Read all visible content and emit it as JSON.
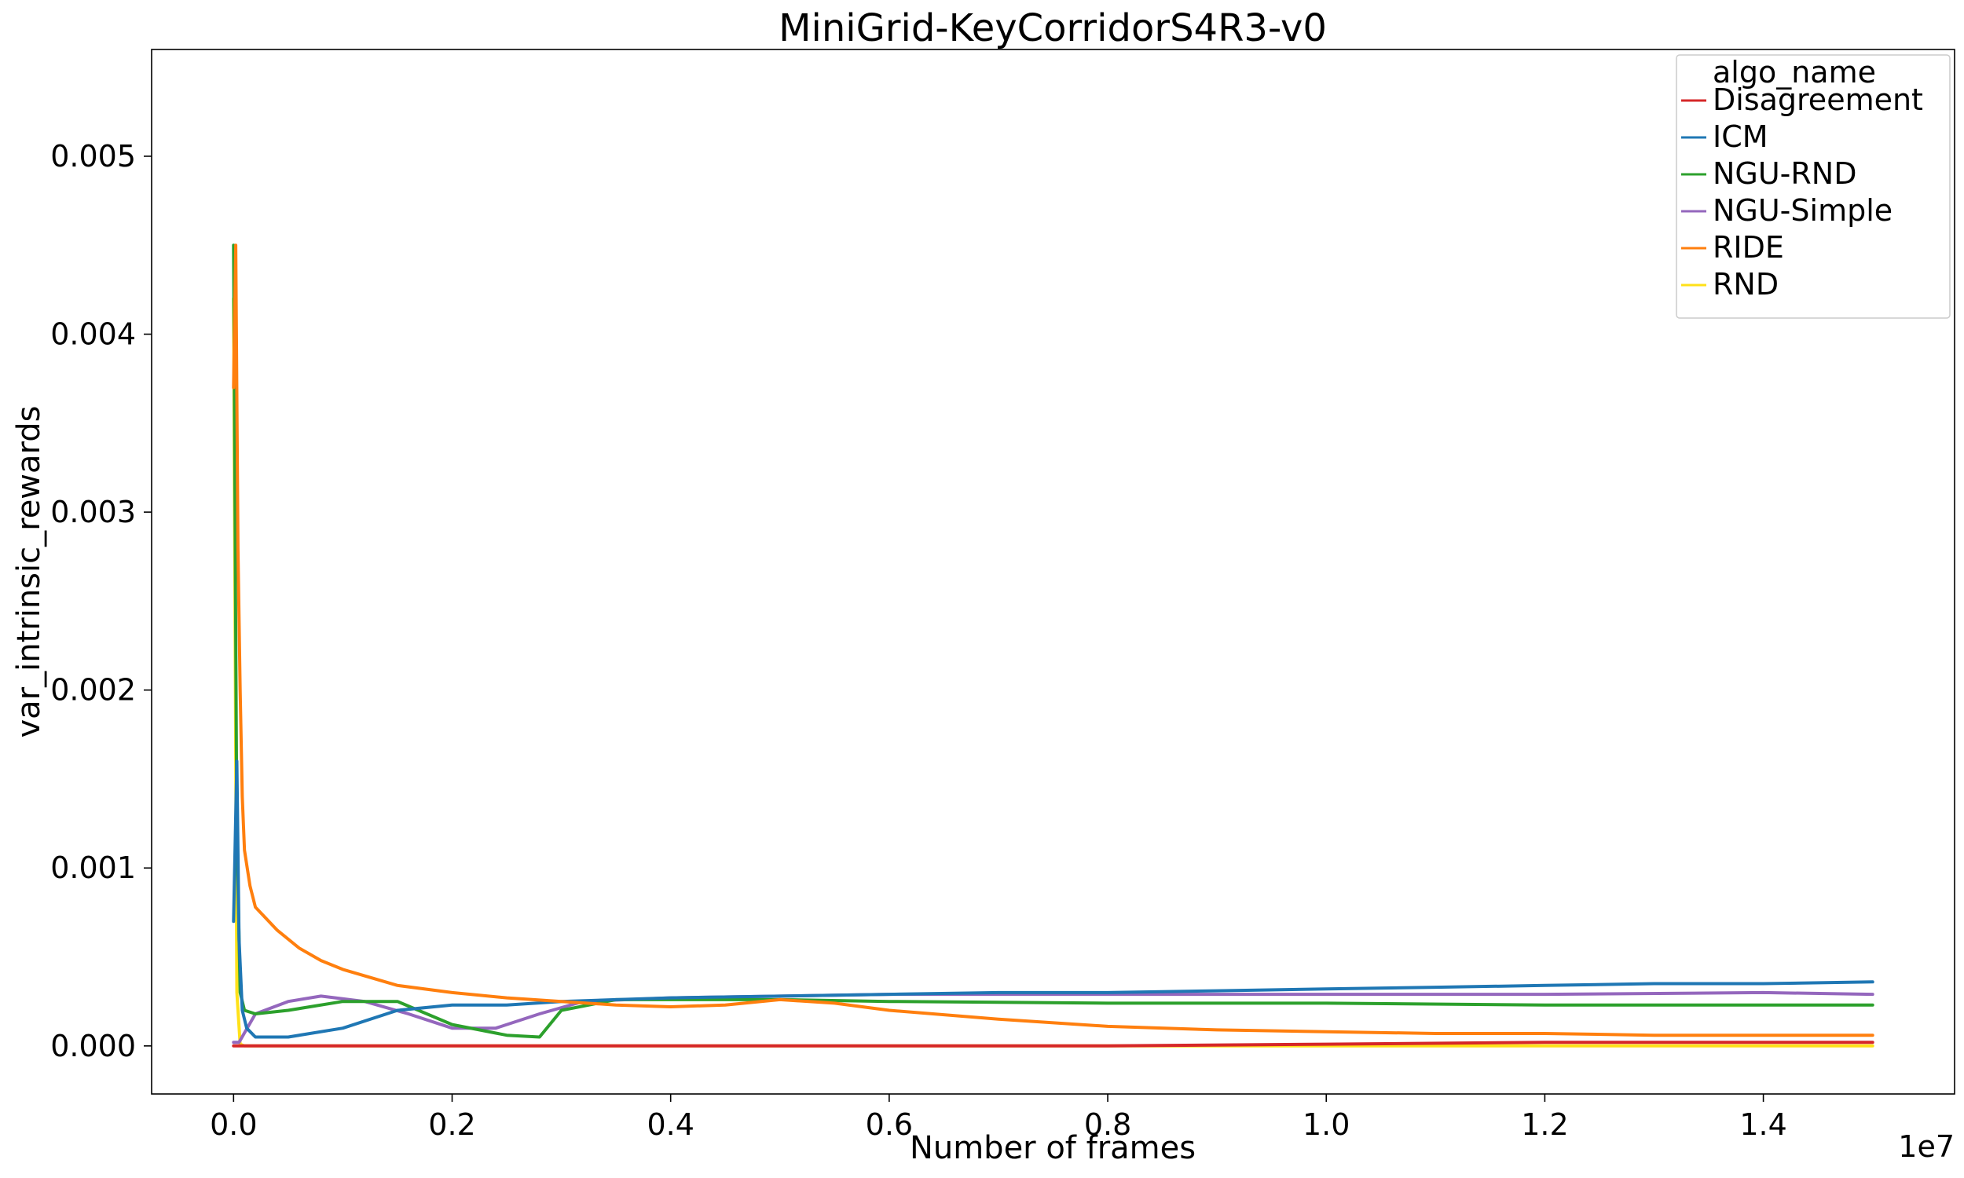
{
  "chart_data": {
    "type": "line",
    "title": "MiniGrid-KeyCorridorS4R3-v0",
    "xlabel": "Number of frames",
    "ylabel": "var_intrinsic_rewards",
    "x_offset_label": "1e7",
    "xlim": [
      -0.075,
      1.575
    ],
    "ylim": [
      -0.00027,
      0.0056
    ],
    "x_ticks": [
      0.0,
      0.2,
      0.4,
      0.6,
      0.8,
      1.0,
      1.2,
      1.4
    ],
    "x_tick_labels": [
      "0.0",
      "0.2",
      "0.4",
      "0.6",
      "0.8",
      "1.0",
      "1.2",
      "1.4"
    ],
    "y_ticks": [
      0.0,
      0.001,
      0.002,
      0.003,
      0.004,
      0.005
    ],
    "y_tick_labels": [
      "0.000",
      "0.001",
      "0.002",
      "0.003",
      "0.004",
      "0.005"
    ],
    "grid": false,
    "legend": {
      "title": "algo_name",
      "placement": "upper-right"
    },
    "series": [
      {
        "name": "Disagreement",
        "color": "#d62728",
        "x": [
          0.0,
          0.2,
          0.4,
          0.6,
          0.8,
          1.0,
          1.2,
          1.4,
          1.5
        ],
        "values": [
          0.0,
          0.0,
          0.0,
          0.0,
          0.0,
          1e-05,
          2e-05,
          2e-05,
          2e-05
        ]
      },
      {
        "name": "ICM",
        "color": "#1f77b4",
        "x": [
          0.0,
          0.003,
          0.005,
          0.008,
          0.012,
          0.02,
          0.05,
          0.1,
          0.15,
          0.2,
          0.25,
          0.3,
          0.35,
          0.4,
          0.5,
          0.6,
          0.7,
          0.8,
          0.9,
          1.0,
          1.1,
          1.2,
          1.3,
          1.4,
          1.5
        ],
        "values": [
          0.0007,
          0.0016,
          0.0006,
          0.0002,
          0.0001,
          5e-05,
          5e-05,
          0.0001,
          0.0002,
          0.00023,
          0.00023,
          0.00025,
          0.00026,
          0.00027,
          0.00028,
          0.00029,
          0.0003,
          0.0003,
          0.00031,
          0.00032,
          0.00033,
          0.00034,
          0.00035,
          0.00035,
          0.00036
        ]
      },
      {
        "name": "NGU-RND",
        "color": "#2ca02c",
        "x": [
          0.0,
          0.003,
          0.006,
          0.01,
          0.02,
          0.05,
          0.1,
          0.15,
          0.2,
          0.25,
          0.28,
          0.3,
          0.35,
          0.4,
          0.5,
          0.6,
          0.8,
          1.0,
          1.2,
          1.4,
          1.5
        ],
        "values": [
          0.0045,
          0.0012,
          0.0003,
          0.0002,
          0.00018,
          0.0002,
          0.00025,
          0.00025,
          0.00012,
          6e-05,
          5e-05,
          0.0002,
          0.00026,
          0.00026,
          0.00026,
          0.00025,
          0.00024,
          0.00024,
          0.00023,
          0.00023,
          0.00023
        ]
      },
      {
        "name": "NGU-Simple",
        "color": "#9467bd",
        "x": [
          0.0,
          0.005,
          0.02,
          0.05,
          0.08,
          0.12,
          0.16,
          0.2,
          0.24,
          0.28,
          0.32,
          0.36,
          0.4,
          0.5,
          0.6,
          0.8,
          1.0,
          1.2,
          1.4,
          1.5
        ],
        "values": [
          2e-05,
          2e-05,
          0.00018,
          0.00025,
          0.00028,
          0.00025,
          0.00018,
          0.0001,
          0.0001,
          0.00018,
          0.00025,
          0.00026,
          0.00027,
          0.00028,
          0.00029,
          0.00029,
          0.00029,
          0.00029,
          0.0003,
          0.00029
        ]
      },
      {
        "name": "RIDE",
        "color": "#ff7f0e",
        "x": [
          0.0,
          0.002,
          0.004,
          0.006,
          0.008,
          0.01,
          0.015,
          0.02,
          0.04,
          0.06,
          0.08,
          0.1,
          0.15,
          0.2,
          0.25,
          0.3,
          0.35,
          0.4,
          0.45,
          0.5,
          0.55,
          0.6,
          0.7,
          0.8,
          0.9,
          1.0,
          1.1,
          1.2,
          1.3,
          1.4,
          1.5
        ],
        "values": [
          0.0037,
          0.0045,
          0.0028,
          0.002,
          0.0014,
          0.0011,
          0.0009,
          0.00078,
          0.00065,
          0.00055,
          0.00048,
          0.00043,
          0.00034,
          0.0003,
          0.00027,
          0.00025,
          0.00023,
          0.00022,
          0.00023,
          0.00026,
          0.00024,
          0.0002,
          0.00015,
          0.00011,
          9e-05,
          8e-05,
          7e-05,
          7e-05,
          6e-05,
          6e-05,
          6e-05
        ]
      },
      {
        "name": "RND",
        "color": "#ffe119",
        "x": [
          0.0,
          0.003,
          0.006,
          0.01,
          0.2,
          0.4,
          0.6,
          0.8,
          1.0,
          1.2,
          1.4,
          1.5
        ],
        "values": [
          0.0042,
          0.0003,
          1e-05,
          0.0,
          0.0,
          0.0,
          0.0,
          0.0,
          0.0,
          0.0,
          0.0,
          0.0
        ]
      }
    ]
  }
}
